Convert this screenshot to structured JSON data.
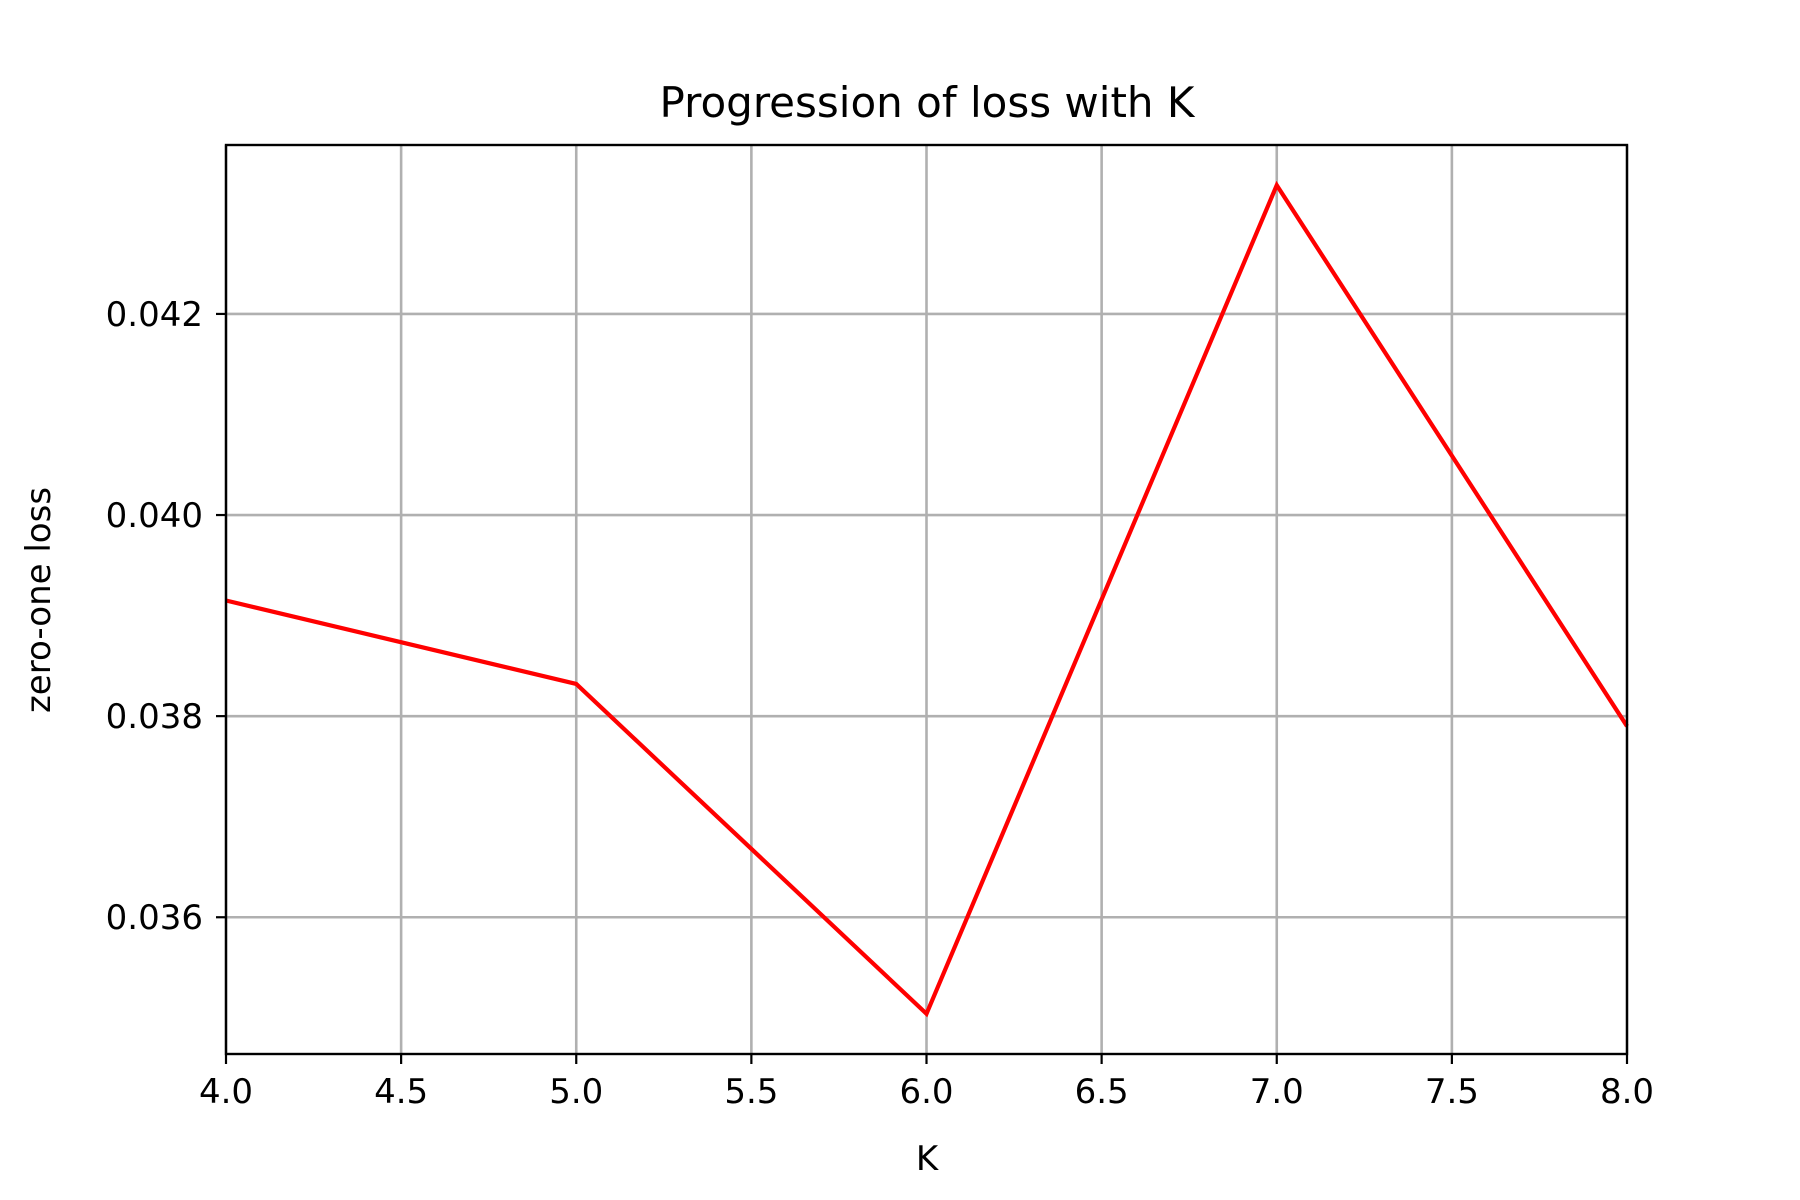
{
  "chart_data": {
    "type": "line",
    "title": "Progression of loss with K",
    "xlabel": "K",
    "ylabel": "zero-one loss",
    "xlim": [
      4.0,
      8.0
    ],
    "ylim": [
      0.03464,
      0.04368
    ],
    "xticks": [
      4.0,
      4.5,
      5.0,
      5.5,
      6.0,
      6.5,
      7.0,
      7.5,
      8.0
    ],
    "xtick_labels": [
      "4.0",
      "4.5",
      "5.0",
      "5.5",
      "6.0",
      "6.5",
      "7.0",
      "7.5",
      "8.0"
    ],
    "yticks": [
      0.036,
      0.038,
      0.04,
      0.042
    ],
    "ytick_labels": [
      "0.036",
      "0.038",
      "0.040",
      "0.042"
    ],
    "grid": true,
    "series": [
      {
        "color": "#ff0000",
        "x": [
          4,
          5,
          6,
          7,
          8
        ],
        "y": [
          0.03915,
          0.03832,
          0.03504,
          0.04328,
          0.0379
        ]
      }
    ]
  }
}
